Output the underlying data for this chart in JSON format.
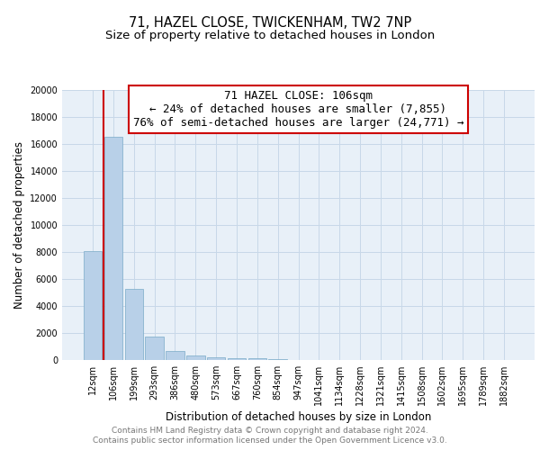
{
  "title": "71, HAZEL CLOSE, TWICKENHAM, TW2 7NP",
  "subtitle": "Size of property relative to detached houses in London",
  "xlabel": "Distribution of detached houses by size in London",
  "ylabel": "Number of detached properties",
  "categories": [
    "12sqm",
    "106sqm",
    "199sqm",
    "293sqm",
    "386sqm",
    "480sqm",
    "573sqm",
    "667sqm",
    "760sqm",
    "854sqm",
    "947sqm",
    "1041sqm",
    "1134sqm",
    "1228sqm",
    "1321sqm",
    "1415sqm",
    "1508sqm",
    "1602sqm",
    "1695sqm",
    "1789sqm",
    "1882sqm"
  ],
  "values": [
    8050,
    16500,
    5300,
    1750,
    700,
    350,
    230,
    150,
    110,
    60,
    0,
    0,
    0,
    0,
    0,
    0,
    0,
    0,
    0,
    0,
    0
  ],
  "bar_color": "#b8d0e8",
  "bar_edge_color": "#7aaac8",
  "annotation_text": "71 HAZEL CLOSE: 106sqm\n← 24% of detached houses are smaller (7,855)\n76% of semi-detached houses are larger (24,771) →",
  "annotation_box_color": "white",
  "annotation_box_edge_color": "#cc0000",
  "property_line_color": "#cc0000",
  "property_line_x": 0.5,
  "ylim": [
    0,
    20000
  ],
  "yticks": [
    0,
    2000,
    4000,
    6000,
    8000,
    10000,
    12000,
    14000,
    16000,
    18000,
    20000
  ],
  "grid_color": "#c8d8e8",
  "background_color": "#e8f0f8",
  "footer_line1": "Contains HM Land Registry data © Crown copyright and database right 2024.",
  "footer_line2": "Contains public sector information licensed under the Open Government Licence v3.0.",
  "title_fontsize": 10.5,
  "subtitle_fontsize": 9.5,
  "label_fontsize": 8.5,
  "tick_fontsize": 7,
  "annotation_fontsize": 9
}
